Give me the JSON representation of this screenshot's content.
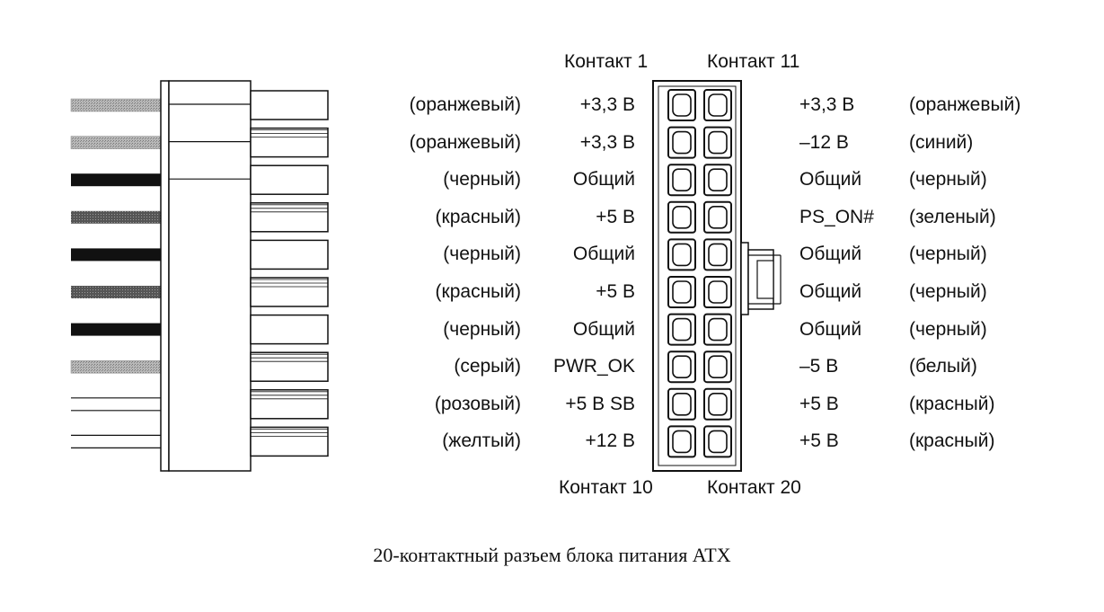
{
  "headers": {
    "contact1": "Контакт 1",
    "contact11": "Контакт 11",
    "contact10": "Контакт 10",
    "contact20": "Контакт 20"
  },
  "left_pins": [
    {
      "color": "(оранжевый)",
      "signal": "+3,3 В"
    },
    {
      "color": "(оранжевый)",
      "signal": "+3,3 В"
    },
    {
      "color": "(черный)",
      "signal": "Общий"
    },
    {
      "color": "(красный)",
      "signal": "+5 В"
    },
    {
      "color": "(черный)",
      "signal": "Общий"
    },
    {
      "color": "(красный)",
      "signal": "+5 В"
    },
    {
      "color": "(черный)",
      "signal": "Общий"
    },
    {
      "color": "(серый)",
      "signal": "PWR_OK"
    },
    {
      "color": "(розовый)",
      "signal": "+5 В SB"
    },
    {
      "color": "(желтый)",
      "signal": "+12 В"
    }
  ],
  "right_pins": [
    {
      "signal": "+3,3 В",
      "color": "(оранжевый)"
    },
    {
      "signal": "–12 В",
      "color": "(синий)"
    },
    {
      "signal": "Общий",
      "color": "(черный)"
    },
    {
      "signal": "PS_ON#",
      "color": "(зеленый)"
    },
    {
      "signal": "Общий",
      "color": "(черный)"
    },
    {
      "signal": "Общий",
      "color": "(черный)"
    },
    {
      "signal": "Общий",
      "color": "(черный)"
    },
    {
      "signal": "–5 В",
      "color": "(белый)"
    },
    {
      "signal": "+5 В",
      "color": "(красный)"
    },
    {
      "signal": "+5 В",
      "color": "(красный)"
    }
  ],
  "wire_styles": [
    "gray",
    "gray",
    "black",
    "darkgray",
    "black",
    "darkgray",
    "black",
    "gray",
    "white",
    "white"
  ],
  "caption": "20-контактный разъем блока питания ATX"
}
